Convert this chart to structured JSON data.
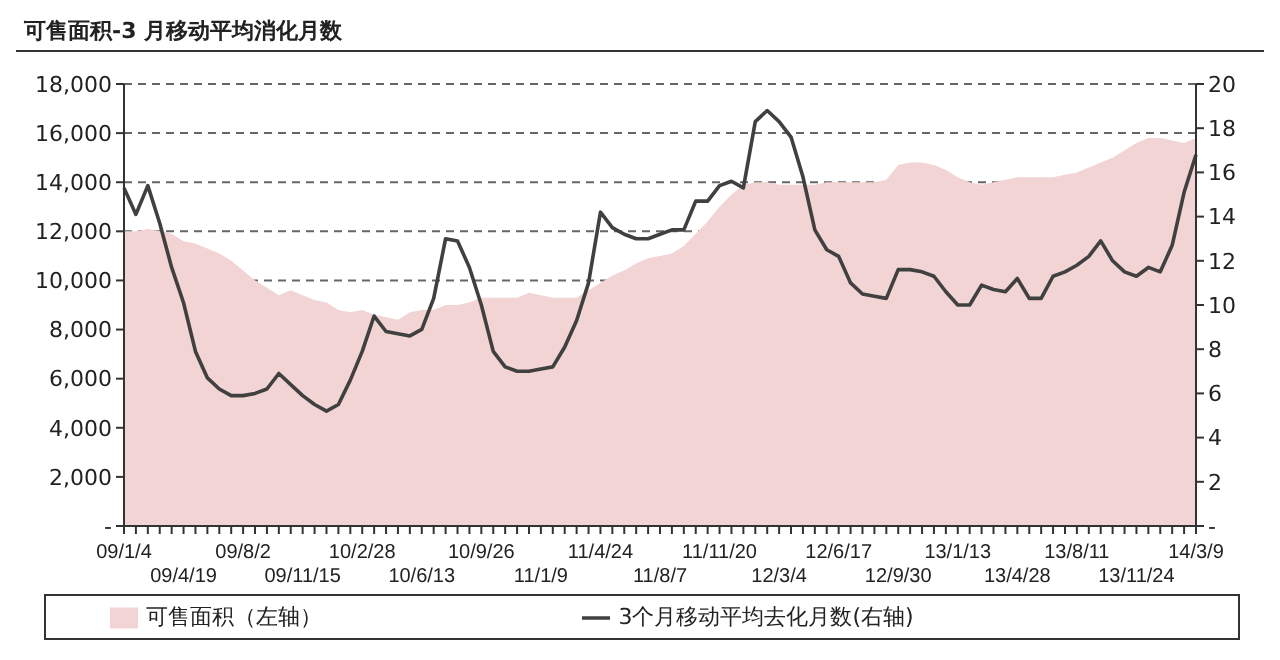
{
  "chart_data": {
    "type": "area",
    "title": "可售面积-3 月移动平均消化月数",
    "categories": [
      "09/1/4",
      null,
      null,
      null,
      null,
      "09/4/19",
      null,
      null,
      null,
      null,
      "09/8/2",
      null,
      null,
      null,
      null,
      "09/11/15",
      null,
      null,
      null,
      null,
      "10/2/28",
      null,
      null,
      null,
      null,
      "10/6/13",
      null,
      null,
      null,
      null,
      "10/9/26",
      null,
      null,
      null,
      null,
      "11/1/9",
      null,
      null,
      null,
      null,
      "11/4/24",
      null,
      null,
      null,
      null,
      "11/8/7",
      null,
      null,
      null,
      null,
      "11/11/20",
      null,
      null,
      null,
      null,
      "12/3/4",
      null,
      null,
      null,
      null,
      "12/6/17",
      null,
      null,
      null,
      null,
      "12/9/30",
      null,
      null,
      null,
      null,
      "13/1/13",
      null,
      null,
      null,
      null,
      "13/4/28",
      null,
      null,
      null,
      null,
      "13/8/11",
      null,
      null,
      null,
      null,
      "13/11/24",
      null,
      null,
      null,
      null,
      "14/3/9"
    ],
    "series": [
      {
        "name": "可售面积（左轴）",
        "color": "#f2d4d4",
        "values": [
          12000,
          12000,
          12100,
          12000,
          11900,
          11600,
          11500,
          11300,
          11100,
          10800,
          10400,
          10000,
          9700,
          9400,
          9600,
          9400,
          9200,
          9100,
          8800,
          8700,
          8800,
          8600,
          8500,
          8400,
          8700,
          8800,
          8800,
          9000,
          9000,
          9100,
          9300,
          9300,
          9300,
          9300,
          9500,
          9400,
          9300,
          9300,
          9300,
          9600,
          9900,
          10200,
          10400,
          10700,
          10900,
          11000,
          11100,
          11400,
          11900,
          12400,
          13000,
          13500,
          13900,
          14000,
          14000,
          13900,
          13900,
          13900,
          13900,
          14000,
          14000,
          14000,
          14000,
          14000,
          14100,
          14700,
          14800,
          14800,
          14700,
          14500,
          14200,
          14000,
          13900,
          14000,
          14100,
          14200,
          14200,
          14200,
          14200,
          14300,
          14400,
          14600,
          14800,
          15000,
          15300,
          15600,
          15800,
          15800,
          15700,
          15600,
          15800
        ]
      },
      {
        "name": "3个月移动平均去化月数(右轴)",
        "type": "line",
        "axis": "y2",
        "color": "#404040",
        "values": [
          15.3,
          14.1,
          15.4,
          13.7,
          11.7,
          10.1,
          7.9,
          6.7,
          6.2,
          5.9,
          5.9,
          6.0,
          6.2,
          6.9,
          6.4,
          5.9,
          5.5,
          5.2,
          5.5,
          6.6,
          7.9,
          9.5,
          8.8,
          8.7,
          8.6,
          8.9,
          10.3,
          13.0,
          12.9,
          11.7,
          10.0,
          7.9,
          7.2,
          7.0,
          7.0,
          7.1,
          7.2,
          8.1,
          9.3,
          11.0,
          14.2,
          13.5,
          13.2,
          13.0,
          13.0,
          13.2,
          13.4,
          13.4,
          14.7,
          14.7,
          15.4,
          15.6,
          15.3,
          18.3,
          18.8,
          18.3,
          17.6,
          15.8,
          13.4,
          12.5,
          12.2,
          11.0,
          10.5,
          10.4,
          10.3,
          11.6,
          11.6,
          11.5,
          11.3,
          10.6,
          10.0,
          10.0,
          10.9,
          10.7,
          10.6,
          11.2,
          10.3,
          10.3,
          11.3,
          11.5,
          11.8,
          12.2,
          12.9,
          12.0,
          11.5,
          11.3,
          11.7,
          11.5,
          12.7,
          15.1,
          16.8
        ]
      }
    ],
    "ylim": [
      0,
      18000
    ],
    "yticks": [
      {
        "value": 0,
        "label": "-"
      },
      {
        "value": 2000,
        "label": "2,000"
      },
      {
        "value": 4000,
        "label": "4,000"
      },
      {
        "value": 6000,
        "label": "6,000"
      },
      {
        "value": 8000,
        "label": "8,000"
      },
      {
        "value": 10000,
        "label": "10,000"
      },
      {
        "value": 12000,
        "label": "12,000"
      },
      {
        "value": 14000,
        "label": "14,000"
      },
      {
        "value": 16000,
        "label": "16,000"
      },
      {
        "value": 18000,
        "label": "18,000"
      }
    ],
    "y2lim": [
      0,
      20
    ],
    "y2ticks": [
      {
        "value": 0,
        "label": "-"
      },
      2,
      4,
      6,
      8,
      10,
      12,
      14,
      16,
      18,
      20
    ],
    "grid": "y",
    "legend": "bottom",
    "marker": "none",
    "line_style": "solid"
  }
}
